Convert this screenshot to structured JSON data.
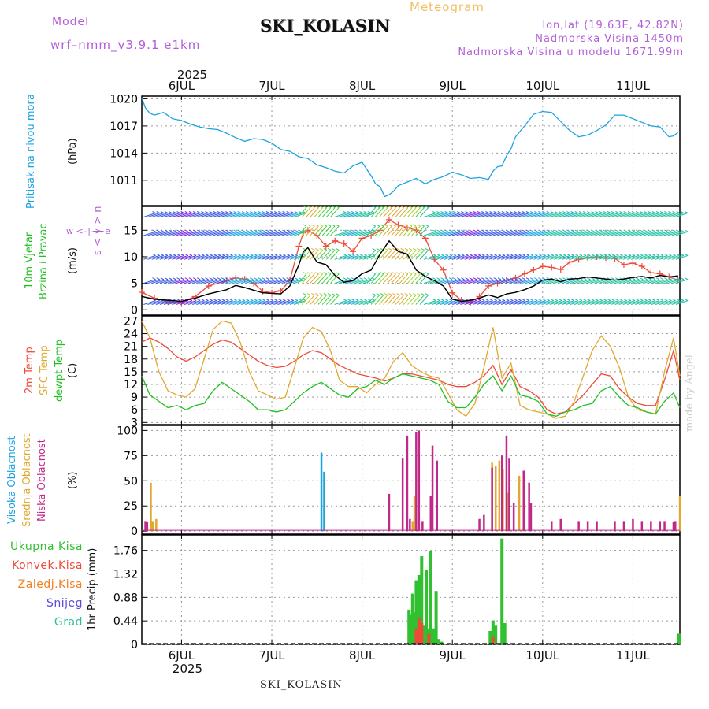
{
  "header": {
    "station": "SKI_KOLASIN",
    "model_label": "Model",
    "model_name": "wrf–nmm_v3.9.1 e1km",
    "title": "Meteogram",
    "lonlat": "lon,lat (19.63E, 42.82N)",
    "elevation": "Nadmorska Visina 1450m",
    "elevation_model": "Nadmorska Visina u modelu 1671.99m"
  },
  "footer": {
    "station": "SKI_KOLASIN",
    "credit": "made by Angel"
  },
  "colors": {
    "pressure": "#1ba3e0",
    "wind_speed": "#000000",
    "gust": "#ee4a3a",
    "temp2m": "#ee4a3a",
    "sfc_temp": "#e0a830",
    "dewpoint": "#20c020",
    "high_cloud": "#1ba3e0",
    "mid_cloud": "#e0a830",
    "low_cloud": "#c0288a",
    "total_precip": "#30c030",
    "conv_precip": "#ee4a3a",
    "frozen_precip": "#f08020",
    "snow": "#5a4ae0",
    "graupel": "#30c0a0"
  },
  "time_axis": {
    "year": "2025",
    "days": [
      "6JUL",
      "7JUL",
      "8JUL",
      "9JUL",
      "10JUL",
      "11JUL"
    ],
    "start_day": 5.56,
    "end_day": 11.52
  },
  "chart_data": [
    {
      "type": "line",
      "id": "pressure",
      "ylabel": "(hPa)",
      "side_label": "Pritisak na nivou mora",
      "yticks": [
        1011,
        1014,
        1017,
        1020
      ],
      "ylim": [
        1008.2,
        1020.3
      ],
      "series": [
        {
          "key": "pressure",
          "x": [
            5.56,
            5.6,
            5.65,
            5.7,
            5.8,
            5.9,
            6.0,
            6.1,
            6.2,
            6.3,
            6.4,
            6.5,
            6.6,
            6.7,
            6.8,
            6.9,
            7.0,
            7.1,
            7.2,
            7.3,
            7.4,
            7.5,
            7.6,
            7.7,
            7.8,
            7.9,
            8.0,
            8.1,
            8.15,
            8.2,
            8.25,
            8.3,
            8.35,
            8.4,
            8.5,
            8.6,
            8.7,
            8.8,
            8.9,
            9.0,
            9.1,
            9.2,
            9.3,
            9.4,
            9.45,
            9.5,
            9.55,
            9.6,
            9.65,
            9.7,
            9.8,
            9.9,
            10.0,
            10.1,
            10.2,
            10.3,
            10.4,
            10.5,
            10.6,
            10.7,
            10.8,
            10.9,
            11.0,
            11.1,
            11.2,
            11.3,
            11.4,
            11.45,
            11.5
          ],
          "y": [
            1020.1,
            1019.0,
            1018.4,
            1018.2,
            1018.5,
            1017.8,
            1017.6,
            1017.2,
            1016.9,
            1016.7,
            1016.6,
            1016.2,
            1015.7,
            1015.3,
            1015.6,
            1015.5,
            1015.1,
            1014.4,
            1014.2,
            1013.6,
            1013.4,
            1012.7,
            1012.4,
            1012.0,
            1011.8,
            1012.6,
            1013.0,
            1011.5,
            1010.6,
            1010.3,
            1009.2,
            1009.4,
            1009.8,
            1010.4,
            1010.8,
            1011.2,
            1010.6,
            1011.1,
            1011.4,
            1011.9,
            1011.6,
            1011.2,
            1011.3,
            1011.1,
            1012.0,
            1012.5,
            1012.6,
            1013.7,
            1014.5,
            1015.8,
            1017.0,
            1018.3,
            1018.6,
            1018.5,
            1017.5,
            1016.5,
            1015.8,
            1016.0,
            1016.5,
            1017.1,
            1018.2,
            1018.2,
            1017.8,
            1017.4,
            1017.0,
            1016.9,
            1015.8,
            1015.9,
            1016.3
          ]
        }
      ]
    },
    {
      "type": "line",
      "id": "wind",
      "ylabel": "(m/s)",
      "side_label": [
        "10m Vjetar",
        "Brzina i Pravac"
      ],
      "dir_legend": "w <–|–> e",
      "dir_legend_ns": "s <–|–> n",
      "yticks": [
        0,
        5,
        10,
        15
      ],
      "ylim": [
        -1,
        19.5
      ],
      "series": [
        {
          "key": "wind_speed",
          "x": [
            5.56,
            5.7,
            5.85,
            6.0,
            6.15,
            6.3,
            6.5,
            6.6,
            6.7,
            6.8,
            6.9,
            7.0,
            7.1,
            7.2,
            7.3,
            7.35,
            7.4,
            7.5,
            7.6,
            7.7,
            7.8,
            7.9,
            8.0,
            8.1,
            8.2,
            8.3,
            8.4,
            8.5,
            8.6,
            8.7,
            8.8,
            8.9,
            9.0,
            9.1,
            9.2,
            9.3,
            9.4,
            9.5,
            9.6,
            9.7,
            9.8,
            9.9,
            10.0,
            10.1,
            10.2,
            10.3,
            10.4,
            10.5,
            10.6,
            10.7,
            10.8,
            10.9,
            11.0,
            11.1,
            11.2,
            11.3,
            11.4,
            11.5
          ],
          "y": [
            2.5,
            2.0,
            1.8,
            1.6,
            2.2,
            3.0,
            3.8,
            4.6,
            4.2,
            3.7,
            3.2,
            3.1,
            3.0,
            4.5,
            8.5,
            11.0,
            11.7,
            9.0,
            8.5,
            6.5,
            5.2,
            5.5,
            6.8,
            7.5,
            10.5,
            13.0,
            11.0,
            10.5,
            7.5,
            6.3,
            5.5,
            4.5,
            2.0,
            1.6,
            1.8,
            2.2,
            2.8,
            2.3,
            3.0,
            3.3,
            3.8,
            4.5,
            5.6,
            5.8,
            5.3,
            5.8,
            5.9,
            6.2,
            6.0,
            5.8,
            5.6,
            5.8,
            6.1,
            6.3,
            6.0,
            6.5,
            6.2,
            6.4
          ]
        },
        {
          "key": "gust",
          "x": [
            5.56,
            5.7,
            5.85,
            6.0,
            6.15,
            6.3,
            6.5,
            6.6,
            6.7,
            6.8,
            6.9,
            7.0,
            7.1,
            7.2,
            7.3,
            7.35,
            7.4,
            7.5,
            7.6,
            7.7,
            7.8,
            7.9,
            8.0,
            8.1,
            8.2,
            8.3,
            8.4,
            8.5,
            8.6,
            8.7,
            8.8,
            8.9,
            9.0,
            9.1,
            9.2,
            9.3,
            9.4,
            9.5,
            9.6,
            9.7,
            9.8,
            9.9,
            10.0,
            10.1,
            10.2,
            10.3,
            10.4,
            10.5,
            10.6,
            10.7,
            10.8,
            10.9,
            11.0,
            11.1,
            11.2,
            11.3,
            11.4,
            11.5
          ],
          "y": [
            3.3,
            2.2,
            1.5,
            1.4,
            2.5,
            4.5,
            5.5,
            6.0,
            5.8,
            5.0,
            3.5,
            3.2,
            3.6,
            5.5,
            12.0,
            14.5,
            15.0,
            14.0,
            12.0,
            13.0,
            12.5,
            11.0,
            13.5,
            14.0,
            15.0,
            17.0,
            16.0,
            15.5,
            15.0,
            13.5,
            9.5,
            7.5,
            3.2,
            1.8,
            1.4,
            2.5,
            4.5,
            5.0,
            5.6,
            6.0,
            6.8,
            7.5,
            8.2,
            8.0,
            7.6,
            9.0,
            9.5,
            9.8,
            10.0,
            9.8,
            9.7,
            8.5,
            8.8,
            8.2,
            7.0,
            6.8,
            6.2,
            5.6
          ]
        }
      ]
    },
    {
      "type": "line",
      "id": "temperature",
      "ylabel": "(C)",
      "side_label": [
        "2m Temp",
        "SFC Temp",
        "dewpt Temp"
      ],
      "yticks": [
        3,
        6,
        9,
        12,
        15,
        18,
        21,
        24,
        27
      ],
      "ylim": [
        2.5,
        28.2
      ],
      "series": [
        {
          "key": "temp2m",
          "x": [
            5.56,
            5.65,
            5.75,
            5.85,
            5.95,
            6.05,
            6.15,
            6.25,
            6.35,
            6.45,
            6.55,
            6.65,
            6.75,
            6.85,
            6.95,
            7.05,
            7.15,
            7.25,
            7.35,
            7.45,
            7.55,
            7.65,
            7.75,
            7.85,
            7.95,
            8.05,
            8.15,
            8.25,
            8.35,
            8.45,
            8.55,
            8.65,
            8.75,
            8.85,
            8.95,
            9.05,
            9.15,
            9.25,
            9.35,
            9.45,
            9.55,
            9.65,
            9.75,
            9.85,
            9.95,
            10.05,
            10.15,
            10.25,
            10.35,
            10.45,
            10.55,
            10.65,
            10.75,
            10.85,
            10.95,
            11.05,
            11.15,
            11.25,
            11.35,
            11.45,
            11.52
          ],
          "y": [
            22.0,
            23.0,
            22.0,
            20.5,
            18.5,
            17.5,
            18.5,
            20.0,
            21.5,
            22.5,
            22.0,
            20.5,
            19.0,
            17.5,
            16.5,
            16.0,
            16.3,
            17.5,
            19.0,
            20.0,
            19.5,
            18.0,
            16.5,
            15.5,
            14.5,
            14.0,
            13.5,
            12.8,
            13.5,
            14.5,
            14.5,
            14.0,
            13.5,
            13.0,
            12.0,
            11.5,
            11.5,
            12.5,
            14.0,
            16.5,
            12.0,
            15.5,
            11.5,
            10.5,
            9.0,
            6.0,
            5.0,
            5.5,
            7.5,
            9.5,
            12.0,
            14.5,
            14.0,
            11.0,
            9.0,
            7.5,
            7.0,
            7.0,
            13.0,
            20.0,
            13.0
          ]
        },
        {
          "key": "sfc_temp",
          "x": [
            5.56,
            5.65,
            5.75,
            5.85,
            5.95,
            6.05,
            6.15,
            6.25,
            6.35,
            6.45,
            6.55,
            6.65,
            6.75,
            6.85,
            6.95,
            7.05,
            7.15,
            7.25,
            7.35,
            7.45,
            7.55,
            7.65,
            7.75,
            7.85,
            7.95,
            8.05,
            8.15,
            8.25,
            8.35,
            8.45,
            8.55,
            8.65,
            8.75,
            8.85,
            8.95,
            9.05,
            9.15,
            9.25,
            9.35,
            9.45,
            9.55,
            9.65,
            9.75,
            9.85,
            9.95,
            10.05,
            10.15,
            10.25,
            10.35,
            10.45,
            10.55,
            10.65,
            10.75,
            10.85,
            10.95,
            11.05,
            11.15,
            11.25,
            11.35,
            11.45,
            11.52
          ],
          "y": [
            27.0,
            23.0,
            15.0,
            10.5,
            9.5,
            9.0,
            11.0,
            18.0,
            25.0,
            27.0,
            26.5,
            22.0,
            15.0,
            10.5,
            9.5,
            8.5,
            9.0,
            16.0,
            23.0,
            25.5,
            24.5,
            20.0,
            13.0,
            11.5,
            11.5,
            10.0,
            12.0,
            13.5,
            17.5,
            19.5,
            16.5,
            15.0,
            14.0,
            13.5,
            10.0,
            6.0,
            4.5,
            7.5,
            16.0,
            25.5,
            13.5,
            17.0,
            7.0,
            6.0,
            5.5,
            5.0,
            4.0,
            4.5,
            8.0,
            14.0,
            20.0,
            23.5,
            21.0,
            16.0,
            9.0,
            6.0,
            5.5,
            5.0,
            15.0,
            23.0,
            14.0
          ]
        },
        {
          "key": "dewpoint",
          "x": [
            5.56,
            5.65,
            5.75,
            5.85,
            5.95,
            6.05,
            6.15,
            6.25,
            6.35,
            6.45,
            6.55,
            6.65,
            6.75,
            6.85,
            6.95,
            7.05,
            7.15,
            7.25,
            7.35,
            7.45,
            7.55,
            7.65,
            7.75,
            7.85,
            7.95,
            8.05,
            8.15,
            8.25,
            8.35,
            8.45,
            8.55,
            8.65,
            8.75,
            8.85,
            8.95,
            9.05,
            9.15,
            9.25,
            9.35,
            9.45,
            9.55,
            9.65,
            9.75,
            9.85,
            9.95,
            10.05,
            10.15,
            10.25,
            10.35,
            10.45,
            10.55,
            10.65,
            10.75,
            10.85,
            10.95,
            11.05,
            11.15,
            11.25,
            11.35,
            11.45,
            11.52
          ],
          "y": [
            14.0,
            9.5,
            8.0,
            6.5,
            7.0,
            6.0,
            7.0,
            7.5,
            10.5,
            12.5,
            11.0,
            9.5,
            8.0,
            6.0,
            6.0,
            5.5,
            6.0,
            8.0,
            10.0,
            11.5,
            12.5,
            11.0,
            9.5,
            9.0,
            11.0,
            11.5,
            13.0,
            12.0,
            13.5,
            14.5,
            14.0,
            13.5,
            13.0,
            12.0,
            8.0,
            6.5,
            6.5,
            9.0,
            12.0,
            14.0,
            10.5,
            14.0,
            9.5,
            9.0,
            8.0,
            5.0,
            4.5,
            5.5,
            6.0,
            7.0,
            7.5,
            10.5,
            11.5,
            9.0,
            7.0,
            6.5,
            5.5,
            5.0,
            8.0,
            10.0,
            6.5
          ]
        }
      ]
    },
    {
      "type": "bar",
      "id": "cloud",
      "ylabel": "(%)",
      "side_label": [
        "Visoka Oblacnost",
        "Srednja Oblacnost",
        "Niska Oblacnost"
      ],
      "yticks": [
        0,
        25,
        50,
        75,
        100
      ],
      "ylim": [
        -3,
        105
      ],
      "series": [
        {
          "key": "high_cloud",
          "x": [
            7.55,
            7.58
          ],
          "values": [
            78,
            59
          ]
        },
        {
          "key": "mid_cloud",
          "x": [
            5.66,
            5.68,
            5.72,
            8.56,
            8.58,
            9.44,
            9.48,
            9.52,
            9.56,
            9.62,
            9.74,
            11.52
          ],
          "values": [
            48,
            10,
            12,
            10,
            35,
            68,
            65,
            70,
            62,
            38,
            55,
            35
          ]
        },
        {
          "key": "low_cloud",
          "x": [
            5.6,
            5.62,
            8.3,
            8.45,
            8.5,
            8.53,
            8.6,
            8.63,
            8.67,
            8.76,
            8.78,
            8.83,
            9.3,
            9.35,
            9.44,
            9.55,
            9.6,
            9.63,
            9.68,
            9.79,
            9.85,
            9.87,
            10.1,
            10.2,
            10.4,
            10.5,
            10.6,
            10.8,
            10.9,
            11.0,
            11.1,
            11.2,
            11.3,
            11.35,
            11.45,
            11.47
          ],
          "values": [
            10,
            9,
            37,
            72,
            95,
            12,
            98,
            100,
            10,
            35,
            85,
            70,
            12,
            16,
            63,
            75,
            95,
            72,
            28,
            60,
            48,
            28,
            10,
            12,
            10,
            10,
            10,
            10,
            10,
            12,
            10,
            10,
            10,
            10,
            9,
            10
          ]
        }
      ]
    },
    {
      "type": "bar",
      "id": "precip",
      "ylabel": "1hr Precip (mm)",
      "side_label": [
        "Ukupna Kisa",
        "Konvek.Kisa",
        "Zaledj.Kisa",
        "Snijeg",
        "Grad"
      ],
      "yticks": [
        0,
        0.44,
        0.88,
        1.32,
        1.76
      ],
      "ylim": [
        0,
        2.05
      ],
      "series": [
        {
          "key": "total_precip",
          "x": [
            8.52,
            8.54,
            8.56,
            8.58,
            8.6,
            8.63,
            8.66,
            8.68,
            8.71,
            8.74,
            8.76,
            8.79,
            8.82,
            8.85,
            8.88,
            9.42,
            9.45,
            9.48,
            9.52,
            9.55,
            9.58,
            11.51
          ],
          "values": [
            0.65,
            0.55,
            0.95,
            0.6,
            1.2,
            1.3,
            1.65,
            0.35,
            1.4,
            0.3,
            1.75,
            0.3,
            1.0,
            0.1,
            0.05,
            0.25,
            0.45,
            0.35,
            0.0,
            1.98,
            0.4,
            0.2
          ]
        },
        {
          "key": "conv_precip",
          "x": [
            8.6,
            8.63,
            8.66,
            8.74,
            9.45
          ],
          "values": [
            0.3,
            0.5,
            0.4,
            0.2,
            0.15
          ]
        }
      ]
    }
  ]
}
